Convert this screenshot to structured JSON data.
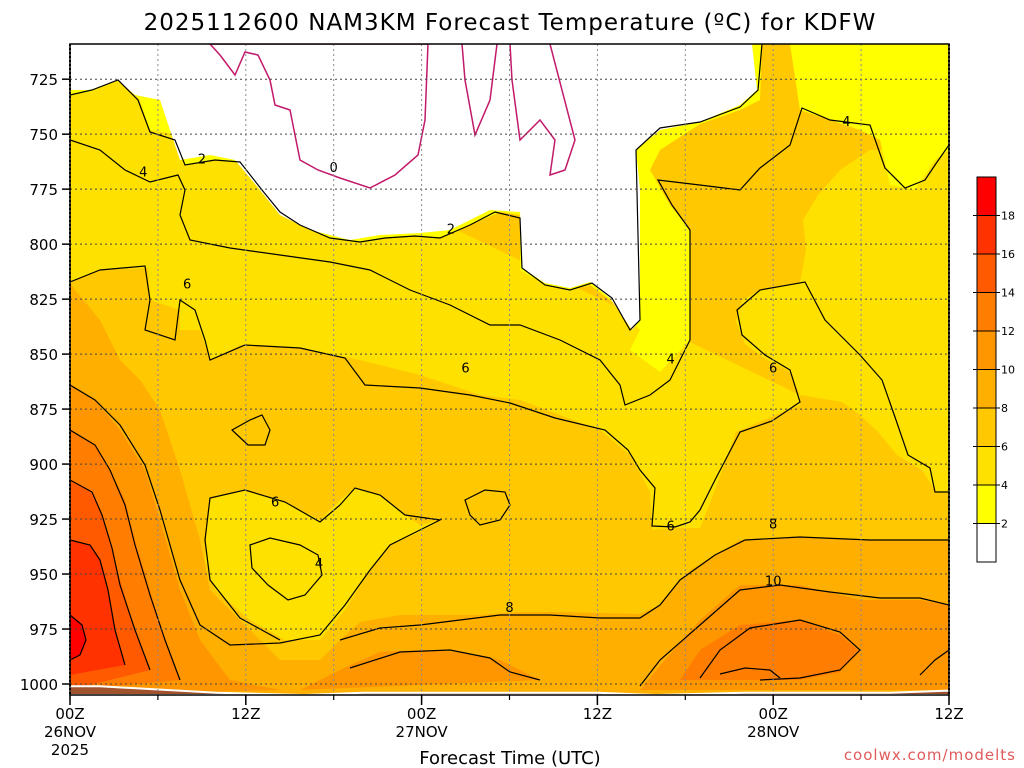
{
  "title": "2025112600 NAM3KM Forecast Temperature (ºC) for KDFW",
  "xlabel": "Forecast Time (UTC)",
  "credit": "coolwx.com/modelts",
  "chart_data": {
    "type": "contour",
    "title": "2025112600 NAM3KM Forecast Temperature (ºC) for KDFW",
    "xlabel": "Forecast Time (UTC)",
    "ylabel": "",
    "x_hours": [
      0,
      6,
      12,
      18,
      24,
      30,
      36,
      42,
      48,
      54,
      60
    ],
    "x_ticks": [
      {
        "hour": 0,
        "lines": [
          "00Z",
          "26NOV",
          "2025"
        ]
      },
      {
        "hour": 12,
        "lines": [
          "12Z"
        ]
      },
      {
        "hour": 24,
        "lines": [
          "00Z",
          "27NOV"
        ]
      },
      {
        "hour": 36,
        "lines": [
          "12Z"
        ]
      },
      {
        "hour": 48,
        "lines": [
          "00Z",
          "28NOV"
        ]
      },
      {
        "hour": 60,
        "lines": [
          "12Z"
        ]
      }
    ],
    "xlim": [
      0,
      60
    ],
    "ylim": [
      1005,
      709
    ],
    "y_ticks": [
      725,
      750,
      775,
      800,
      825,
      850,
      875,
      900,
      925,
      950,
      975,
      1000
    ],
    "y_axis": "pressure (hPa), inverted",
    "grid": true,
    "surface_pressure": [
      {
        "hour": 0,
        "hPa": 1001
      },
      {
        "hour": 2,
        "hPa": 1001
      },
      {
        "hour": 10,
        "hPa": 1004
      },
      {
        "hour": 16,
        "hPa": 1005
      },
      {
        "hour": 20,
        "hPa": 1004
      },
      {
        "hour": 36,
        "hPa": 1004
      },
      {
        "hour": 40,
        "hPa": 1005
      },
      {
        "hour": 46,
        "hPa": 1004
      },
      {
        "hour": 56,
        "hPa": 1004
      },
      {
        "hour": 60,
        "hPa": 1003
      }
    ],
    "contour_interval": 2,
    "contour_labels": [
      {
        "hour": 9,
        "hPa": 761,
        "value": "2"
      },
      {
        "hour": 5,
        "hPa": 767,
        "value": "4"
      },
      {
        "hour": 18,
        "hPa": 765,
        "value": "0"
      },
      {
        "hour": 26,
        "hPa": 793,
        "value": "2"
      },
      {
        "hour": 8,
        "hPa": 818,
        "value": "6"
      },
      {
        "hour": 27,
        "hPa": 856,
        "value": "6"
      },
      {
        "hour": 41,
        "hPa": 852,
        "value": "4"
      },
      {
        "hour": 48,
        "hPa": 856,
        "value": "6"
      },
      {
        "hour": 53,
        "hPa": 744,
        "value": "4"
      },
      {
        "hour": 14,
        "hPa": 917,
        "value": "6"
      },
      {
        "hour": 17,
        "hPa": 945,
        "value": "4"
      },
      {
        "hour": 30,
        "hPa": 965,
        "value": "8"
      },
      {
        "hour": 41,
        "hPa": 928,
        "value": "6"
      },
      {
        "hour": 48,
        "hPa": 927,
        "value": "8"
      },
      {
        "hour": 48,
        "hPa": 953,
        "value": "10"
      }
    ],
    "colorbar": {
      "levels": [
        2,
        4,
        6,
        8,
        10,
        12,
        14,
        16,
        18
      ],
      "colors": [
        "#ffffff",
        "#ffff00",
        "#ffe100",
        "#ffc800",
        "#ffaf00",
        "#ff9600",
        "#ff7d00",
        "#ff5a00",
        "#ff3200",
        "#ff0000"
      ]
    }
  }
}
